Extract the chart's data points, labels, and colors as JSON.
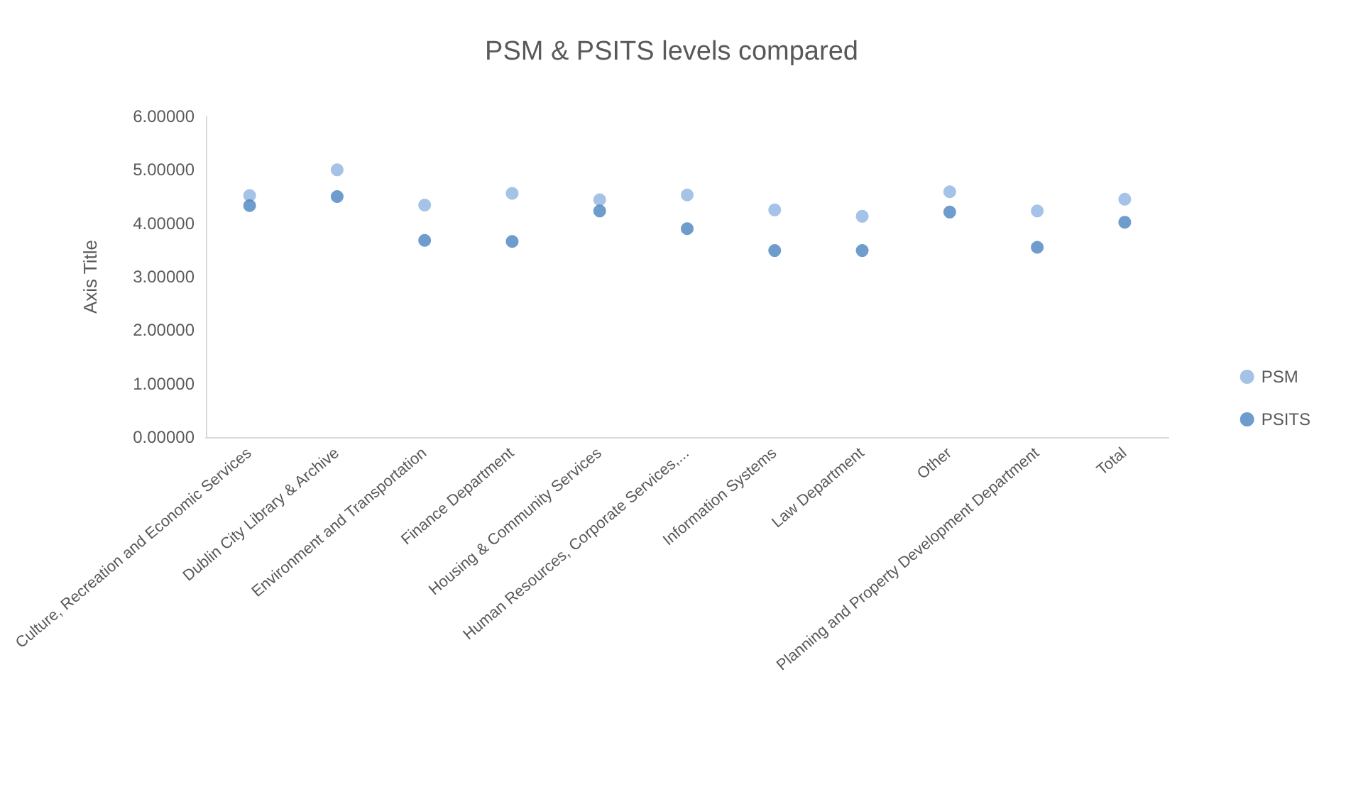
{
  "chart_data": {
    "type": "scatter",
    "title": "PSM & PSITS levels compared",
    "ylabel": "Axis Title",
    "categories": [
      "Culture, Recreation and Economic Services",
      "Dublin City Library & Archive",
      "Environment and Transportation",
      "Finance Department",
      "Housing & Community Services",
      "Human Resources, Corporate Services,...",
      "Information Systems",
      "Law Department",
      "Other",
      "Planning and Property Development Department",
      "Total"
    ],
    "series": [
      {
        "name": "PSM",
        "color": "#8fb4e0",
        "values": [
          4.52,
          5.0,
          4.34,
          4.56,
          4.44,
          4.53,
          4.25,
          4.13,
          4.59,
          4.23,
          4.45
        ]
      },
      {
        "name": "PSITS",
        "color": "#4a84c0",
        "values": [
          4.33,
          4.5,
          3.68,
          3.66,
          4.23,
          3.9,
          3.49,
          3.49,
          4.21,
          3.55,
          4.02
        ]
      }
    ],
    "ylim": [
      0,
      6
    ],
    "yticks": [
      {
        "value": 0,
        "label": "0.00000"
      },
      {
        "value": 1,
        "label": "1.00000"
      },
      {
        "value": 2,
        "label": "2.00000"
      },
      {
        "value": 3,
        "label": "3.00000"
      },
      {
        "value": 4,
        "label": "4.00000"
      },
      {
        "value": 5,
        "label": "5.00000"
      },
      {
        "value": 6,
        "label": "6.00000"
      }
    ],
    "grid": false,
    "legend": "right",
    "marker": "circle"
  }
}
